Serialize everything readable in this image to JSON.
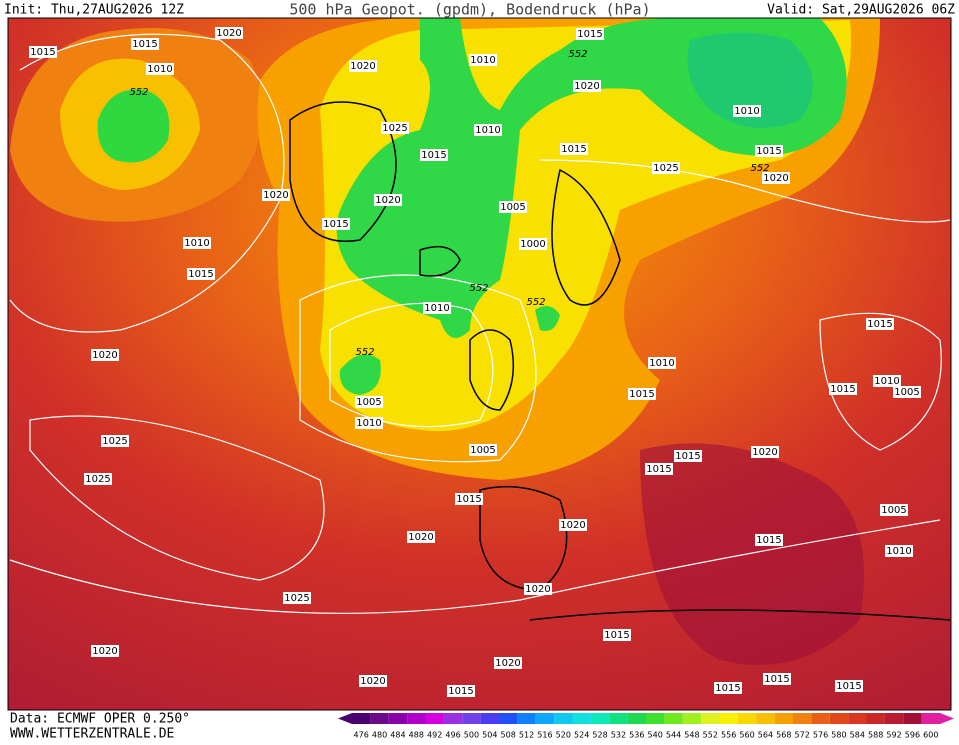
{
  "header": {
    "init": "Init: Thu,27AUG2026 12Z",
    "title": "500 hPa Geopot. (gpdm), Bodendruck (hPa)",
    "valid": "Valid: Sat,29AUG2026 06Z"
  },
  "footer": {
    "source": "Data: ECMWF OPER 0.250°",
    "site": "WWW.WETTERZENTRALE.DE"
  },
  "isobar_labels": [
    "1015",
    "1015",
    "1020",
    "1010",
    "1020",
    "1010",
    "1015",
    "1020",
    "1025",
    "1010",
    "1015",
    "1015",
    "1010",
    "1015",
    "1020",
    "1025",
    "1020",
    "1020",
    "1005",
    "1015",
    "1010",
    "1000",
    "1015",
    "1010",
    "1015",
    "1020",
    "1010",
    "1015",
    "1010",
    "1005",
    "1015",
    "1005",
    "1010",
    "1025",
    "1005",
    "1020",
    "1015",
    "1015",
    "1025",
    "1015",
    "1020",
    "1005",
    "1020",
    "1015",
    "1010",
    "1020",
    "1025",
    "1015",
    "1020",
    "1020",
    "1020",
    "1015",
    "1015",
    "1015",
    "1015"
  ],
  "geopotential_labels": [
    "552",
    "552",
    "552",
    "552",
    "552",
    "552"
  ],
  "legend": {
    "ticks": [
      476,
      480,
      484,
      488,
      492,
      496,
      500,
      504,
      508,
      512,
      516,
      520,
      524,
      528,
      532,
      536,
      540,
      544,
      548,
      552,
      556,
      560,
      564,
      568,
      572,
      576,
      580,
      584,
      588,
      592,
      596,
      600
    ],
    "colors": [
      "#4b0070",
      "#6a0a8a",
      "#8a00a8",
      "#b000c8",
      "#d400e0",
      "#9a30e0",
      "#7040e8",
      "#4a3cf0",
      "#2050f8",
      "#1080ff",
      "#10a8ff",
      "#10c8f0",
      "#10e0e0",
      "#10e8b8",
      "#10e080",
      "#20d850",
      "#40e030",
      "#70e820",
      "#a0f020",
      "#e0f020",
      "#f8f000",
      "#f8d800",
      "#f8c000",
      "#f8a000",
      "#f08010",
      "#e86018",
      "#e04818",
      "#d83820",
      "#c82828",
      "#b81c30",
      "#a01038",
      "#e020a0"
    ]
  }
}
